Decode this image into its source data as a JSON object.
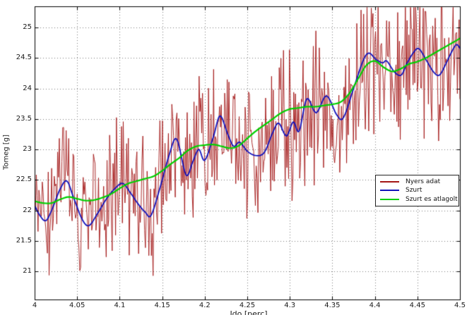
{
  "figure": {
    "background": "#ffffff",
    "axis_color": "#000000",
    "grid_color": "#7a7a7a",
    "grid_style": "dotted",
    "tick_label_color": "#1a1a1a"
  },
  "chart_data": {
    "type": "line",
    "title": "",
    "xlabel": "Ido [perc]",
    "ylabel": "Tomeg [g]",
    "xlim": [
      4.0,
      4.5
    ],
    "ylim": [
      20.54,
      25.35
    ],
    "x_ticks": [
      "4",
      "4.05",
      "4.1",
      "4.15",
      "4.2",
      "4.25",
      "4.3",
      "4.35",
      "4.4",
      "4.45",
      "4.5"
    ],
    "y_ticks": [
      "21",
      "21.5",
      "22",
      "22.5",
      "23",
      "23.5",
      "24",
      "24.5",
      "25"
    ],
    "grid": "on",
    "legend": {
      "position": "right-center",
      "border_color": "#222222",
      "background": "#ffffff",
      "entries": [
        "Nyers adat",
        "Szurt",
        "Szurt es atlagolt"
      ]
    },
    "series": [
      {
        "name": "Nyers adat",
        "color": "#a31515",
        "line_width": 0.9,
        "description": "raw noisy measurement oscillating around the filtered curve",
        "generated_from": {
          "baseline_series": "Szurt",
          "noise_distribution": "triangular",
          "noise_max": 1.5,
          "n_points": 500,
          "seed": 9
        }
      },
      {
        "name": "Szurt",
        "color": "#1212bb",
        "line_width": 1.8,
        "points": [
          [
            4.0,
            22.08
          ],
          [
            4.006,
            21.92
          ],
          [
            4.013,
            21.83
          ],
          [
            4.02,
            22.0
          ],
          [
            4.03,
            22.35
          ],
          [
            4.038,
            22.48
          ],
          [
            4.046,
            22.2
          ],
          [
            4.056,
            21.85
          ],
          [
            4.064,
            21.75
          ],
          [
            4.074,
            21.95
          ],
          [
            4.085,
            22.2
          ],
          [
            4.096,
            22.38
          ],
          [
            4.104,
            22.44
          ],
          [
            4.113,
            22.28
          ],
          [
            4.122,
            22.1
          ],
          [
            4.13,
            21.97
          ],
          [
            4.137,
            21.92
          ],
          [
            4.148,
            22.4
          ],
          [
            4.158,
            22.9
          ],
          [
            4.167,
            23.17
          ],
          [
            4.178,
            22.58
          ],
          [
            4.186,
            22.8
          ],
          [
            4.193,
            23.0
          ],
          [
            4.2,
            22.82
          ],
          [
            4.21,
            23.2
          ],
          [
            4.218,
            23.55
          ],
          [
            4.227,
            23.25
          ],
          [
            4.234,
            23.05
          ],
          [
            4.241,
            23.12
          ],
          [
            4.25,
            22.97
          ],
          [
            4.26,
            22.9
          ],
          [
            4.27,
            22.95
          ],
          [
            4.28,
            23.28
          ],
          [
            4.287,
            23.43
          ],
          [
            4.296,
            23.22
          ],
          [
            4.304,
            23.45
          ],
          [
            4.311,
            23.3
          ],
          [
            4.32,
            23.83
          ],
          [
            4.331,
            23.6
          ],
          [
            4.343,
            23.88
          ],
          [
            4.355,
            23.57
          ],
          [
            4.363,
            23.52
          ],
          [
            4.375,
            24.0
          ],
          [
            4.386,
            24.45
          ],
          [
            4.393,
            24.58
          ],
          [
            4.401,
            24.48
          ],
          [
            4.409,
            24.42
          ],
          [
            4.414,
            24.45
          ],
          [
            4.423,
            24.27
          ],
          [
            4.431,
            24.22
          ],
          [
            4.438,
            24.42
          ],
          [
            4.446,
            24.6
          ],
          [
            4.452,
            24.65
          ],
          [
            4.461,
            24.45
          ],
          [
            4.469,
            24.27
          ],
          [
            4.476,
            24.22
          ],
          [
            4.484,
            24.42
          ],
          [
            4.491,
            24.62
          ],
          [
            4.496,
            24.72
          ],
          [
            4.5,
            24.66
          ]
        ]
      },
      {
        "name": "Szurt es atlagolt",
        "color": "#00d000",
        "line_width": 2.2,
        "x_start": 4.0,
        "x_step": 0.01,
        "values": [
          22.15,
          22.12,
          22.12,
          22.18,
          22.22,
          22.19,
          22.16,
          22.17,
          22.21,
          22.27,
          22.36,
          22.44,
          22.48,
          22.52,
          22.56,
          22.65,
          22.76,
          22.86,
          22.98,
          23.05,
          23.07,
          23.08,
          23.05,
          23.02,
          23.06,
          23.18,
          23.3,
          23.4,
          23.5,
          23.6,
          23.66,
          23.68,
          23.7,
          23.7,
          23.72,
          23.74,
          23.78,
          23.92,
          24.15,
          24.38,
          24.45,
          24.35,
          24.28,
          24.32,
          24.4,
          24.44,
          24.5,
          24.58,
          24.66,
          24.74,
          24.82
        ]
      }
    ]
  }
}
